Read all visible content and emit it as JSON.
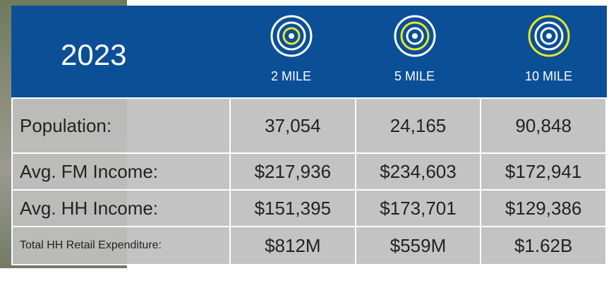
{
  "header": {
    "year": "2023",
    "columns": [
      "2 MILE",
      "5 MILE",
      "10 MILE"
    ]
  },
  "table": {
    "rows": [
      [
        "Population:",
        "37,054",
        "24,165",
        "90,848"
      ],
      [
        "Avg. FM Income:",
        "$217,936",
        "$234,603",
        "$172,941"
      ],
      [
        "Avg. HH Income:",
        "$151,395",
        "$173,701",
        "$129,386"
      ],
      [
        "Total HH Retail Expenditure:",
        "$812M",
        "$559M",
        "$1.62B"
      ]
    ]
  }
}
